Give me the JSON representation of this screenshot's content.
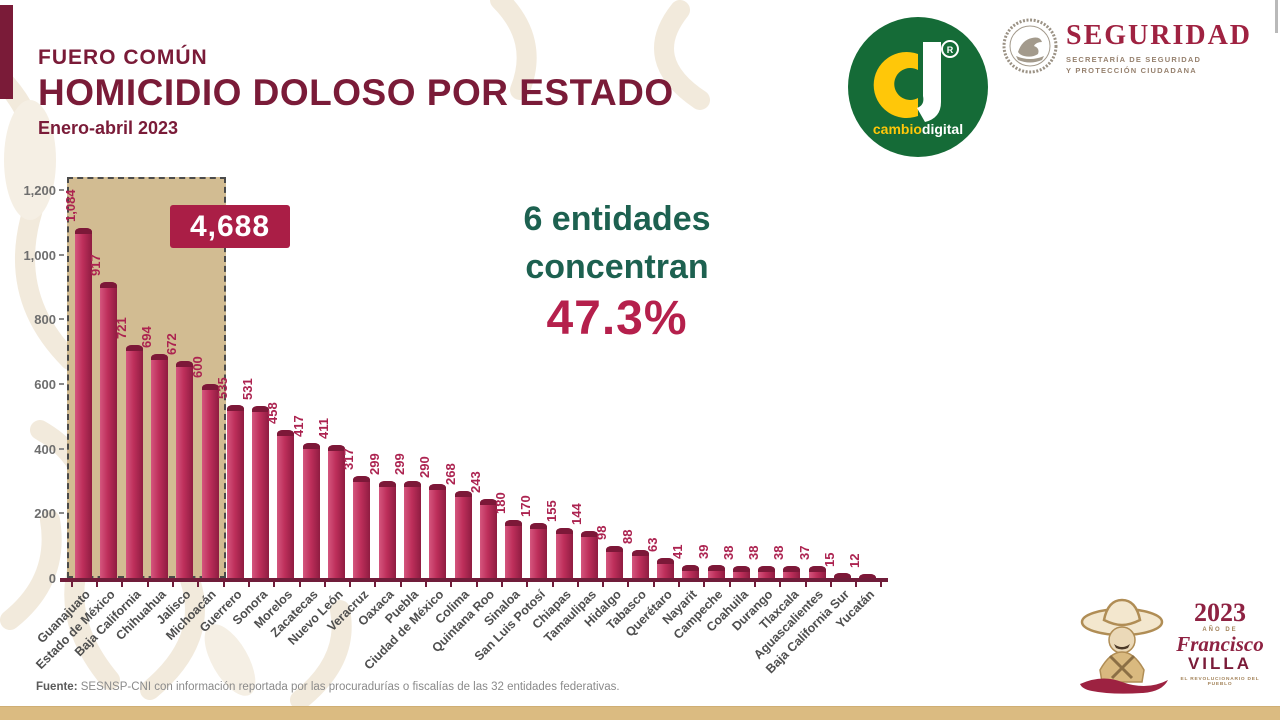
{
  "header": {
    "kicker": "FUERO COMÚN",
    "title": "HOMICIDIO DOLOSO POR ESTADO",
    "subtitle": "Enero-abril 2023"
  },
  "logos": {
    "cambiodigital": {
      "brand_part1": "cambio",
      "brand_part2": "digital",
      "registered_mark": "®"
    },
    "seguridad": {
      "name": "SEGURIDAD",
      "line1": "SECRETARÍA DE SEGURIDAD",
      "line2": "Y PROTECCIÓN CIUDADANA"
    },
    "villa": {
      "year": "2023",
      "small_caps": "AÑO DE",
      "first_name": "Francisco",
      "last_name": "VILLA",
      "tagline": "EL REVOLUCIONARIO DEL PUEBLO"
    }
  },
  "callout": {
    "line1": "6 entidades",
    "line2": "concentran",
    "value": "47.3%"
  },
  "footer": {
    "source_label": "Fuente:",
    "source_text": " SESNSP-CNI con información reportada por las procuradurías o fiscalías de las 32 entidades federativas."
  },
  "colors": {
    "maroon": "#7A1B38",
    "bar_main": "#BE2F5B",
    "bar_dark": "#8F1C41",
    "bar_light": "#D4567E",
    "badge_bg": "#AA1E46",
    "green_text": "#1D6150",
    "pct_text": "#B5204C",
    "highlight_fill": "#D2BC92",
    "bottom_strip": "#DBBB81",
    "logo_green": "#156B37",
    "logo_yellow": "#FFC709"
  },
  "chart_data": {
    "type": "bar",
    "title": "HOMICIDIO DOLOSO POR ESTADO",
    "subtitle": "Enero-abril 2023",
    "xlabel": "",
    "ylabel": "",
    "ylim": [
      0,
      1240
    ],
    "yticks": [
      0,
      200,
      400,
      600,
      800,
      1000,
      1200
    ],
    "grid": false,
    "value_labels_rotation": -90,
    "category_labels_rotation": -45,
    "categories": [
      "Guanajuato",
      "Estado de México",
      "Baja California",
      "Chihuahua",
      "Jalisco",
      "Michoacán",
      "Guerrero",
      "Sonora",
      "Morelos",
      "Zacatecas",
      "Nuevo León",
      "Veracruz",
      "Oaxaca",
      "Puebla",
      "Ciudad de México",
      "Colima",
      "Quintana Roo",
      "Sinaloa",
      "San Luis Potosí",
      "Chiapas",
      "Tamaulipas",
      "Hidalgo",
      "Tabasco",
      "Querétaro",
      "Nayarit",
      "Campeche",
      "Coahuila",
      "Durango",
      "Tlaxcala",
      "Aguascalientes",
      "Baja California Sur",
      "Yucatán"
    ],
    "values": [
      1084,
      917,
      721,
      694,
      672,
      600,
      535,
      531,
      458,
      417,
      411,
      317,
      299,
      299,
      290,
      268,
      243,
      180,
      170,
      155,
      144,
      98,
      88,
      63,
      41,
      39,
      38,
      38,
      38,
      37,
      15,
      12
    ],
    "highlight": {
      "first_n": 6,
      "total_label": "4,688"
    }
  }
}
